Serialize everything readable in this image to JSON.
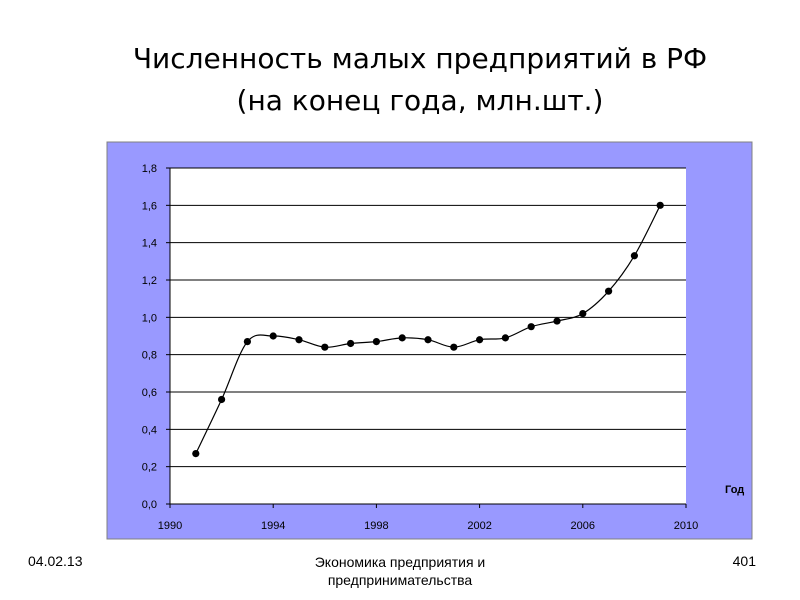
{
  "slide": {
    "title_line1": "Численность малых предприятий в РФ",
    "title_line2": "(на конец года, млн.шт.)"
  },
  "footer": {
    "date": "04.02.13",
    "course_line1": "Экономика предприятия и",
    "course_line2": "предпринимательства",
    "page": "401"
  },
  "colors": {
    "plot_background": "#ffffff",
    "outer_background": "#9999ff",
    "line": "#000000",
    "marker": "#000000",
    "grid": "#000000"
  },
  "chart_data": {
    "type": "line",
    "xlabel": "Год",
    "ylabel": "",
    "xlim": [
      1990,
      2010
    ],
    "ylim": [
      0,
      1.8
    ],
    "x_ticks": [
      "1990",
      "1994",
      "1998",
      "2002",
      "2006",
      "2010"
    ],
    "y_ticks": [
      "0,0",
      "0,2",
      "0,4",
      "0,6",
      "0,8",
      "1,0",
      "1,2",
      "1,4",
      "1,6",
      "1,8"
    ],
    "grid": true,
    "smooth": true,
    "series": [
      {
        "x": [
          1991,
          1992,
          1993,
          1994,
          1995,
          1996,
          1997,
          1998,
          1999,
          2000,
          2001,
          2002,
          2003,
          2004,
          2005,
          2006,
          2007,
          2008,
          2009
        ],
        "y": [
          0.27,
          0.56,
          0.87,
          0.9,
          0.88,
          0.84,
          0.86,
          0.87,
          0.89,
          0.88,
          0.84,
          0.88,
          0.89,
          0.95,
          0.98,
          1.02,
          1.14,
          1.33,
          1.6
        ]
      }
    ]
  }
}
